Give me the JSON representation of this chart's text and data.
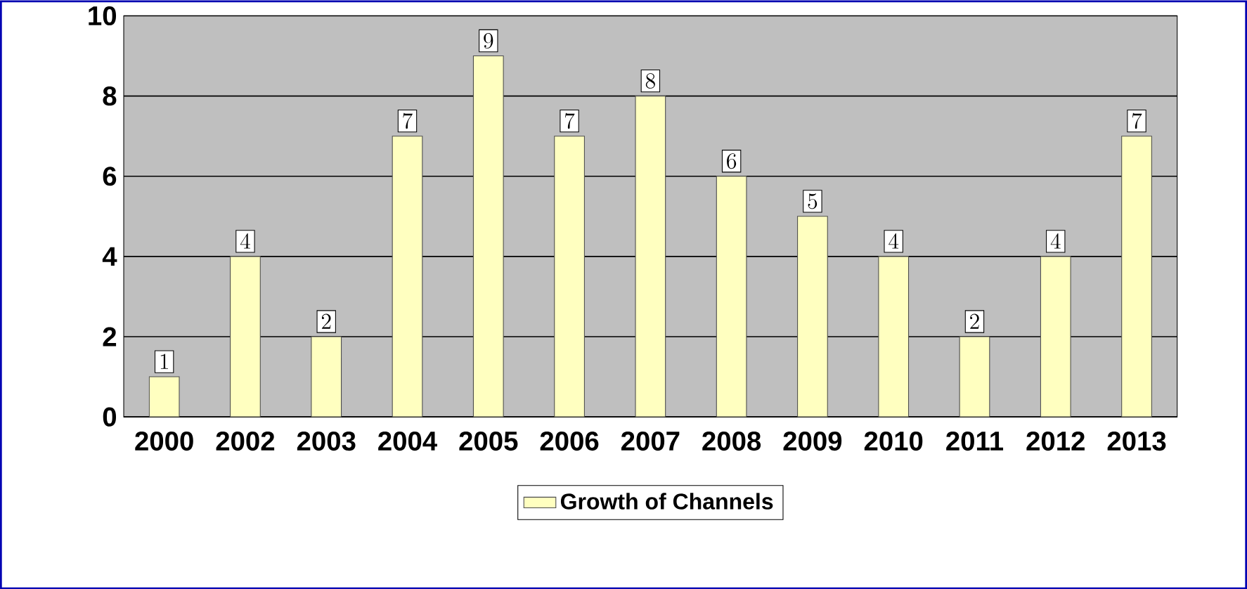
{
  "chart_data": {
    "type": "bar",
    "categories": [
      "2000",
      "2002",
      "2003",
      "2004",
      "2005",
      "2006",
      "2007",
      "2008",
      "2009",
      "2010",
      "2011",
      "2012",
      "2013"
    ],
    "series": [
      {
        "name": "Growth of Channels",
        "color": "#ffffc0",
        "values": [
          1,
          4,
          2,
          7,
          9,
          7,
          8,
          6,
          5,
          4,
          2,
          4,
          7
        ]
      }
    ],
    "ylim": [
      0,
      10
    ],
    "yticks": [
      0,
      2,
      4,
      6,
      8,
      10
    ],
    "grid": "y",
    "legend": "bottom",
    "data_labels": true
  }
}
